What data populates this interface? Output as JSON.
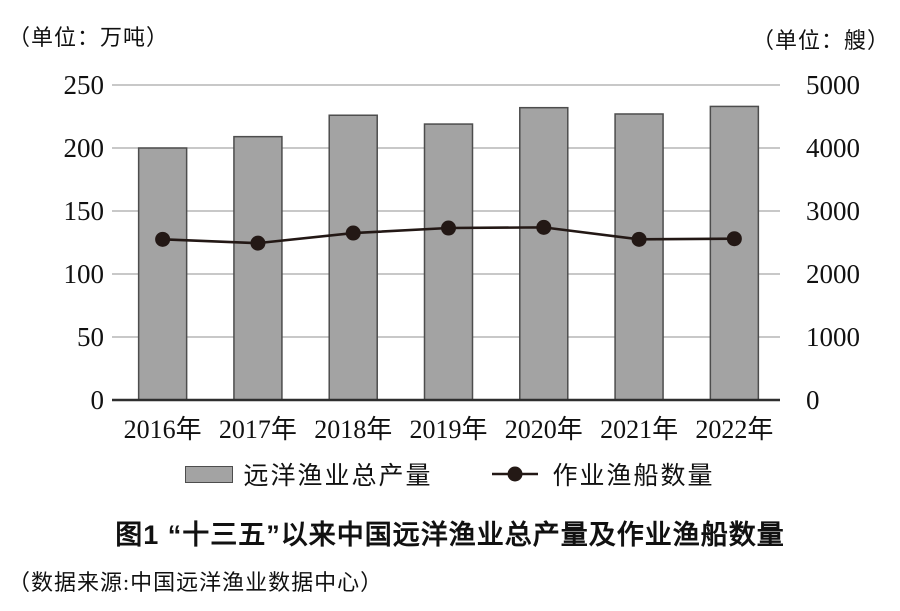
{
  "chart_data": {
    "type": "bar",
    "subtype": "bar+line dual-axis combo",
    "categories": [
      "2016年",
      "2017年",
      "2018年",
      "2019年",
      "2020年",
      "2021年",
      "2022年"
    ],
    "series": [
      {
        "name": "远洋渔业总产量",
        "type": "bar",
        "axis": "left",
        "values": [
          200,
          209,
          226,
          219,
          232,
          227,
          233
        ]
      },
      {
        "name": "作业渔船数量",
        "type": "line",
        "axis": "right",
        "values": [
          2550,
          2490,
          2650,
          2730,
          2740,
          2550,
          2560
        ]
      }
    ],
    "left_axis": {
      "unit": "（单位：万吨）",
      "min": 0,
      "max": 250,
      "ticks": [
        0,
        50,
        100,
        150,
        200,
        250
      ]
    },
    "right_axis": {
      "unit": "（单位：艘）",
      "min": 0,
      "max": 5000,
      "ticks": [
        0,
        1000,
        2000,
        3000,
        4000,
        5000
      ]
    },
    "grid": true,
    "legend_position": "bottom",
    "colors": {
      "bar_fill": "#a3a3a3",
      "bar_border": "#4d4d4d",
      "line": "#231815",
      "dot": "#231815",
      "gridline": "#a6a6a6",
      "axis_line": "#2e2e2e",
      "text": "#111111"
    }
  },
  "legend": {
    "bar_label": "远洋渔业总产量",
    "line_label": "作业渔船数量"
  },
  "caption": {
    "title": "图1  “十三五”以来中国远洋渔业总产量及作业渔船数量",
    "source": "（数据来源:中国远洋渔业数据中心）"
  }
}
